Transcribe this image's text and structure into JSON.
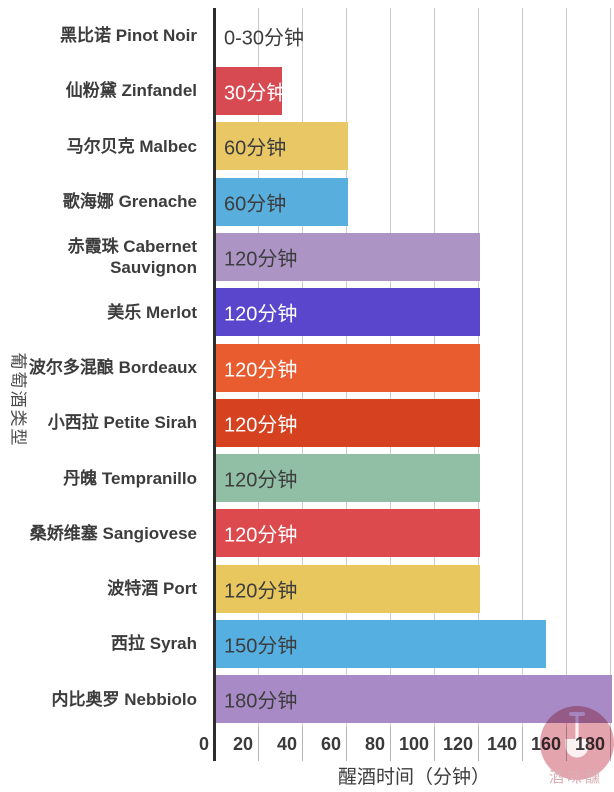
{
  "watermark": {
    "text": "酒味醺",
    "badge_color": "#c9495c"
  },
  "chart_data": {
    "type": "bar",
    "orientation": "horizontal",
    "title": "",
    "xlabel": "醒酒时间（分钟）",
    "ylabel": "葡萄酒类型",
    "xticks": [
      0,
      20,
      40,
      60,
      80,
      100,
      120,
      140,
      160,
      180
    ],
    "xlim": [
      0,
      182
    ],
    "grid": "vertical",
    "legend": "none",
    "axis_color": "#2d2d2d",
    "gridline_color": "#cccccc",
    "categories": [
      "黑比诺 Pinot Noir",
      "仙粉黛 Zinfandel",
      "马尔贝克 Malbec",
      "歌海娜 Grenache",
      "赤霞珠 Cabernet Sauvignon",
      "美乐 Merlot",
      "波尔多混酿 Bordeaux",
      "小西拉 Petite Sirah",
      "丹魄 Tempranillo",
      "桑娇维塞 Sangiovese",
      "波特酒 Port",
      "西拉 Syrah",
      "内比奥罗 Nebbiolo"
    ],
    "values": [
      0,
      30,
      60,
      60,
      120,
      120,
      120,
      120,
      120,
      120,
      120,
      150,
      180
    ],
    "rows": [
      {
        "category": "黑比诺 Pinot Noir",
        "label": "0-30分钟",
        "minutes": 0,
        "bar_color": "transparent",
        "label_color": "#3d3d3d"
      },
      {
        "category": "仙粉黛 Zinfandel",
        "label": "30分钟",
        "minutes": 30,
        "bar_color": "#d84a52",
        "label_color": "#ffffff"
      },
      {
        "category": "马尔贝克 Malbec",
        "label": "60分钟",
        "minutes": 60,
        "bar_color": "#e9c765",
        "label_color": "#3d3d3d"
      },
      {
        "category": "歌海娜 Grenache",
        "label": "60分钟",
        "minutes": 60,
        "bar_color": "#58aedd",
        "label_color": "#3d3d3d"
      },
      {
        "category": "赤霞珠 Cabernet Sauvignon",
        "label": "120分钟",
        "minutes": 120,
        "bar_color": "#ac95c5",
        "label_color": "#3d3d3d"
      },
      {
        "category": "美乐 Merlot",
        "label": "120分钟",
        "minutes": 120,
        "bar_color": "#5a46cd",
        "label_color": "#ffffff"
      },
      {
        "category": "波尔多混酿 Bordeaux",
        "label": "120分钟",
        "minutes": 120,
        "bar_color": "#e85c30",
        "label_color": "#ffffff"
      },
      {
        "category": "小西拉 Petite Sirah",
        "label": "120分钟",
        "minutes": 120,
        "bar_color": "#d64220",
        "label_color": "#ffffff"
      },
      {
        "category": "丹魄 Tempranillo",
        "label": "120分钟",
        "minutes": 120,
        "bar_color": "#90bfa6",
        "label_color": "#3d3d3d"
      },
      {
        "category": "桑娇维塞 Sangiovese",
        "label": "120分钟",
        "minutes": 120,
        "bar_color": "#dc4a4e",
        "label_color": "#ffffff"
      },
      {
        "category": "波特酒 Port",
        "label": "120分钟",
        "minutes": 120,
        "bar_color": "#e9c75f",
        "label_color": "#3d3d3d"
      },
      {
        "category": "西拉 Syrah",
        "label": "150分钟",
        "minutes": 150,
        "bar_color": "#55afe0",
        "label_color": "#3d3d3d"
      },
      {
        "category": "内比奥罗 Nebbiolo",
        "label": "180分钟",
        "minutes": 180,
        "bar_color": "#a88bc6",
        "label_color": "#3d3d3d"
      }
    ]
  }
}
